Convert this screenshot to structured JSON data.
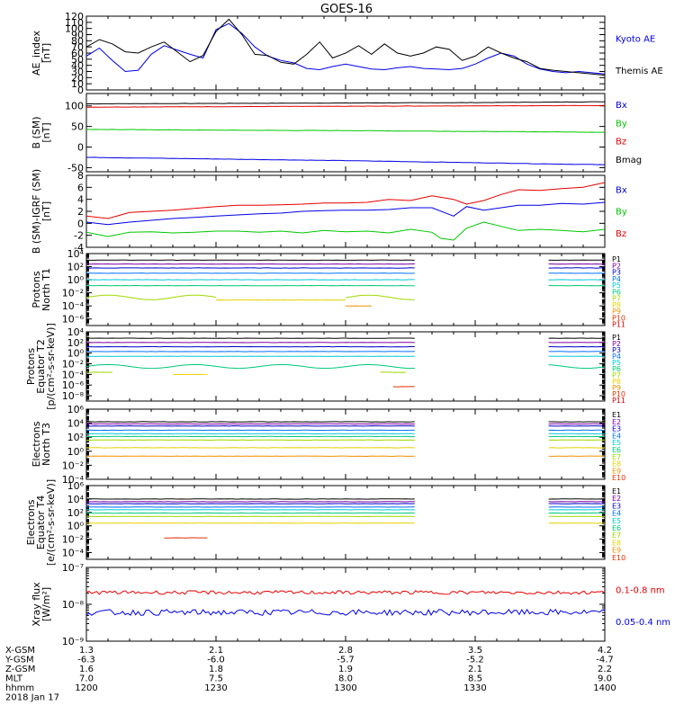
{
  "title": "GOES-16",
  "colors": {
    "black": "#000000",
    "blue": "#0000e6",
    "red": "#e60000",
    "green": "#00c800",
    "p": [
      "#000000",
      "#8000a0",
      "#0000c8",
      "#0070ff",
      "#00c8d8",
      "#00c878",
      "#a0d800",
      "#e8d000",
      "#f09000",
      "#e03000",
      "#d00000"
    ],
    "e": [
      "#000000",
      "#8000a0",
      "#0000c8",
      "#0070ff",
      "#00c8d8",
      "#00c878",
      "#a0d800",
      "#e8d000",
      "#f09000",
      "#e03000",
      "#d00000"
    ]
  },
  "chart_data": {
    "type": "line",
    "x_axis": {
      "labels": [
        "1200",
        "1230",
        "1300",
        "1330",
        "1400"
      ],
      "rows": [
        {
          "name": "X-GSM",
          "values": [
            "1.3",
            "2.1",
            "2.8",
            "3.5",
            "4.2"
          ]
        },
        {
          "name": "Y-GSM",
          "values": [
            "-6.3",
            "-6.0",
            "-5.7",
            "-5.2",
            "-4.7"
          ]
        },
        {
          "name": "Z-GSM",
          "values": [
            "1.6",
            "1.8",
            "1.9",
            "2.1",
            "2.2"
          ]
        },
        {
          "name": "MLT",
          "values": [
            "7.0",
            "7.5",
            "8.0",
            "8.5",
            "9.0"
          ]
        },
        {
          "name": "hhmm",
          "values": [
            "1200",
            "1230",
            "1300",
            "1330",
            "1400"
          ]
        }
      ],
      "date": "2018 Jan 17",
      "range_minutes": [
        0,
        120
      ]
    },
    "panels": [
      {
        "id": "ae",
        "ylabel": [
          "AE_index",
          "[nT]"
        ],
        "ylim": [
          0,
          120
        ],
        "scale": "linear",
        "ticks": [
          0,
          10,
          20,
          30,
          40,
          50,
          60,
          70,
          80,
          90,
          100,
          110,
          120
        ],
        "tick_labels": [
          "0",
          "10",
          "20",
          "30",
          "40",
          "50",
          "60",
          "70",
          "80",
          "90",
          "100",
          "110",
          "120"
        ],
        "legend": [
          "Kyoto AE",
          "Themis AE"
        ],
        "legend_colors": [
          "#0000e6",
          "#000000"
        ],
        "series": [
          {
            "name": "Kyoto AE",
            "color": "#0000e6",
            "x": [
              0,
              3,
              6,
              9,
              12,
              15,
              18,
              21,
              24,
              27,
              30,
              33,
              36,
              39,
              42,
              45,
              48,
              51,
              54,
              57,
              60,
              63,
              66,
              69,
              72,
              75,
              78,
              81,
              84,
              87,
              90,
              93,
              96,
              99,
              102,
              105,
              108,
              111,
              114,
              117,
              120
            ],
            "y": [
              55,
              68,
              48,
              30,
              32,
              58,
              72,
              65,
              58,
              52,
              98,
              108,
              92,
              70,
              55,
              48,
              44,
              35,
              33,
              38,
              42,
              38,
              34,
              33,
              36,
              38,
              35,
              34,
              33,
              35,
              42,
              52,
              60,
              55,
              42,
              34,
              30,
              28,
              30,
              28,
              26
            ]
          },
          {
            "name": "Themis AE",
            "color": "#000000",
            "x": [
              0,
              3,
              6,
              9,
              12,
              15,
              18,
              21,
              24,
              27,
              30,
              33,
              36,
              39,
              42,
              45,
              48,
              51,
              54,
              57,
              60,
              63,
              66,
              69,
              72,
              75,
              78,
              81,
              84,
              87,
              90,
              93,
              96,
              99,
              102,
              105,
              108,
              111,
              114,
              117,
              120
            ],
            "y": [
              70,
              82,
              75,
              62,
              60,
              70,
              78,
              62,
              46,
              56,
              95,
              115,
              90,
              58,
              56,
              45,
              42,
              58,
              78,
              52,
              60,
              72,
              58,
              75,
              60,
              55,
              60,
              70,
              66,
              48,
              55,
              70,
              60,
              52,
              46,
              35,
              32,
              30,
              28,
              26,
              24
            ]
          }
        ]
      },
      {
        "id": "bsm",
        "ylabel": [
          "B (SM)",
          "[nT]"
        ],
        "ylim": [
          -60,
          130
        ],
        "scale": "linear",
        "ticks": [
          -50,
          0,
          50,
          100
        ],
        "tick_labels": [
          "-50",
          "0",
          "50",
          "100"
        ],
        "legend": [
          "Bx",
          "By",
          "Bz",
          "Bmag"
        ],
        "legend_colors": [
          "#0000e6",
          "#00c800",
          "#e60000",
          "#000000"
        ],
        "series": [
          {
            "name": "Bmag",
            "color": "#000000",
            "x": [
              0,
              30,
              60,
              90,
              120
            ],
            "y": [
              105,
              106,
              107,
              108,
              110
            ]
          },
          {
            "name": "Bz",
            "color": "#e60000",
            "x": [
              0,
              30,
              60,
              90,
              120
            ],
            "y": [
              97,
              98,
              99,
              100,
              101
            ]
          },
          {
            "name": "By",
            "color": "#00c800",
            "x": [
              0,
              30,
              60,
              90,
              120
            ],
            "y": [
              43,
              41,
              40,
              38,
              36
            ]
          },
          {
            "name": "Bx",
            "color": "#0000e6",
            "x": [
              0,
              30,
              60,
              90,
              120
            ],
            "y": [
              -25,
              -29,
              -33,
              -38,
              -43
            ]
          }
        ]
      },
      {
        "id": "bdiff",
        "ylabel": [
          "B (SM)-IGRF (SM)",
          "[nT]"
        ],
        "ylim": [
          -4,
          8
        ],
        "scale": "linear",
        "ticks": [
          -4,
          -2,
          0,
          2,
          4,
          6,
          8
        ],
        "tick_labels": [
          "-4",
          "-2",
          "0",
          "2",
          "4",
          "6",
          "8"
        ],
        "legend": [
          "Bx",
          "By",
          "Bz"
        ],
        "legend_colors": [
          "#0000e6",
          "#00c800",
          "#e60000"
        ],
        "series": [
          {
            "name": "Bz",
            "color": "#e60000",
            "x": [
              0,
              5,
              10,
              15,
              20,
              25,
              30,
              35,
              40,
              45,
              50,
              55,
              60,
              65,
              70,
              75,
              80,
              85,
              88,
              92,
              96,
              100,
              105,
              110,
              115,
              120
            ],
            "y": [
              1.2,
              0.8,
              1.8,
              2.0,
              2.2,
              2.5,
              2.8,
              3.0,
              3.0,
              3.1,
              3.2,
              3.4,
              3.4,
              3.5,
              4.0,
              3.8,
              4.6,
              4.0,
              3.2,
              3.8,
              4.8,
              5.6,
              5.5,
              5.8,
              6.0,
              6.8
            ]
          },
          {
            "name": "Bx",
            "color": "#0000e6",
            "x": [
              0,
              5,
              10,
              15,
              20,
              25,
              30,
              35,
              40,
              45,
              50,
              55,
              60,
              65,
              70,
              75,
              80,
              85,
              88,
              92,
              96,
              100,
              105,
              110,
              115,
              120
            ],
            "y": [
              0.2,
              -0.2,
              0.2,
              0.5,
              0.8,
              1.0,
              1.2,
              1.4,
              1.6,
              1.7,
              2.0,
              2.1,
              2.2,
              2.2,
              2.3,
              2.6,
              2.6,
              1.2,
              2.8,
              2.2,
              2.6,
              3.0,
              3.0,
              3.3,
              3.2,
              3.5
            ]
          },
          {
            "name": "By",
            "color": "#00c800",
            "x": [
              0,
              5,
              10,
              15,
              20,
              25,
              30,
              35,
              40,
              45,
              50,
              55,
              60,
              65,
              70,
              75,
              80,
              82,
              85,
              88,
              92,
              96,
              100,
              105,
              110,
              115,
              120
            ],
            "y": [
              -1.5,
              -2.2,
              -1.5,
              -1.4,
              -1.6,
              -1.5,
              -1.3,
              -1.3,
              -1.5,
              -1.3,
              -1.6,
              -1.2,
              -1.4,
              -1.3,
              -1.6,
              -1.0,
              -1.5,
              -2.5,
              -2.8,
              -0.8,
              0.2,
              -0.5,
              -1.2,
              -1.0,
              -1.2,
              -1.4,
              -1.0
            ]
          }
        ]
      },
      {
        "id": "protons_t1",
        "ylabel": [
          "Protons",
          "North T1"
        ],
        "ylim_log": [
          -7,
          4
        ],
        "scale": "log",
        "ticks": [
          4,
          2,
          0,
          -2,
          -4,
          -6
        ],
        "tick_labels": [
          "10⁴",
          "10²",
          "10⁰",
          "10⁻²",
          "10⁻⁴",
          "10⁻⁶"
        ],
        "legend": [
          "P1",
          "P2",
          "P3",
          "P4",
          "P5",
          "P6",
          "P7",
          "P8",
          "P9",
          "P10",
          "P11"
        ],
        "gaps": [
          [
            76,
            107
          ]
        ],
        "series": [
          {
            "name": "P1",
            "log_level": 3.0
          },
          {
            "name": "P2",
            "log_level": 2.4
          },
          {
            "name": "P3",
            "log_level": 1.8
          },
          {
            "name": "P4",
            "log_level": 1.0
          },
          {
            "name": "P5",
            "log_level": 0.0
          },
          {
            "name": "P6",
            "log_level": -0.9
          },
          {
            "name": "P7",
            "log_level": -2.7,
            "segments": [
              [
                0,
                30
              ],
              [
                60,
                76
              ]
            ]
          },
          {
            "name": "P8",
            "log_level": -3.1,
            "segments": [
              [
                30,
                60
              ]
            ]
          },
          {
            "name": "P9",
            "log_level": -4.0,
            "segments": [
              [
                60,
                66
              ]
            ]
          }
        ]
      },
      {
        "id": "protons_t2",
        "ylabel": [
          "Protons",
          "Equator T2",
          "[p/(cm²-s-sr-keV)]"
        ],
        "ylim_log": [
          -9,
          4
        ],
        "scale": "log",
        "ticks": [
          4,
          2,
          0,
          -2,
          -4,
          -6,
          -8
        ],
        "tick_labels": [
          "10⁴",
          "10²",
          "10⁰",
          "10⁻²",
          "10⁻⁴",
          "10⁻⁶",
          "10⁻⁸"
        ],
        "legend": [
          "P1",
          "P2",
          "P3",
          "P4",
          "P5",
          "P6",
          "P7",
          "P8",
          "P9",
          "P10",
          "P11"
        ],
        "gaps": [
          [
            76,
            107
          ]
        ],
        "series": [
          {
            "name": "P1",
            "log_level": 2.8
          },
          {
            "name": "P2",
            "log_level": 2.0
          },
          {
            "name": "P3",
            "log_level": 1.2
          },
          {
            "name": "P4",
            "log_level": 0.3
          },
          {
            "name": "P5",
            "log_level": -0.6
          },
          {
            "name": "P6",
            "log_level": -2.5
          },
          {
            "name": "P7",
            "log_level": -3.6,
            "segments": [
              [
                0,
                6
              ],
              [
                68,
                74
              ]
            ]
          },
          {
            "name": "P8",
            "log_level": -4.0,
            "segments": [
              [
                20,
                28
              ]
            ]
          },
          {
            "name": "P10",
            "log_level": -6.3,
            "segments": [
              [
                71,
                76
              ]
            ]
          }
        ]
      },
      {
        "id": "electrons_t3",
        "ylabel": [
          "Electrons",
          "North T3"
        ],
        "ylim_log": [
          -4,
          6
        ],
        "scale": "log",
        "ticks": [
          6,
          4,
          2,
          0,
          -2,
          -4
        ],
        "tick_labels": [
          "10⁶",
          "10⁴",
          "10²",
          "10⁰",
          "10⁻²",
          "10⁻⁴"
        ],
        "legend": [
          "E1",
          "E2",
          "E3",
          "E4",
          "E5",
          "E6",
          "E7",
          "E8",
          "E9",
          "E10"
        ],
        "gaps": [
          [
            76,
            107
          ]
        ],
        "series": [
          {
            "name": "E1",
            "log_level": 4.2
          },
          {
            "name": "E2",
            "log_level": 3.9
          },
          {
            "name": "E3",
            "log_level": 3.6
          },
          {
            "name": "E4",
            "log_level": 3.0
          },
          {
            "name": "E5",
            "log_level": 2.5
          },
          {
            "name": "E6",
            "log_level": 2.1
          },
          {
            "name": "E7",
            "log_level": 1.6
          },
          {
            "name": "E8",
            "log_level": 0.5
          },
          {
            "name": "E9",
            "log_level": -0.7
          }
        ]
      },
      {
        "id": "electrons_t4",
        "ylabel": [
          "Electrons",
          "Equator T4",
          "[e/(cm²-s-sr-keV)]"
        ],
        "ylim_log": [
          -5,
          6
        ],
        "scale": "log",
        "ticks": [
          6,
          4,
          2,
          0,
          -2,
          -4
        ],
        "tick_labels": [
          "10⁶",
          "10⁴",
          "10²",
          "10⁰",
          "10⁻²",
          "10⁻⁴"
        ],
        "legend": [
          "E1",
          "E2",
          "E3",
          "E4",
          "E5",
          "E6",
          "E7",
          "E8",
          "E9",
          "E10"
        ],
        "gaps": [
          [
            76,
            107
          ]
        ],
        "series": [
          {
            "name": "E1",
            "log_level": 4.0
          },
          {
            "name": "E2",
            "log_level": 3.6
          },
          {
            "name": "E3",
            "log_level": 3.3
          },
          {
            "name": "E4",
            "log_level": 2.8
          },
          {
            "name": "E5",
            "log_level": 2.4
          },
          {
            "name": "E6",
            "log_level": 1.9
          },
          {
            "name": "E7",
            "log_level": 1.4
          },
          {
            "name": "E8",
            "log_level": 0.4
          },
          {
            "name": "E10",
            "log_level": -1.8,
            "segments": [
              [
                18,
                28
              ]
            ]
          }
        ]
      },
      {
        "id": "xray",
        "ylabel": [
          "Xray flux",
          "[W/m²]"
        ],
        "ylim_log": [
          -9,
          -7
        ],
        "scale": "log",
        "ticks": [
          -7,
          -8,
          -9
        ],
        "tick_labels": [
          "10⁻⁷",
          "10⁻⁸",
          "10⁻⁹"
        ],
        "legend": [
          "0.1-0.8 nm",
          "0.05-0.4 nm"
        ],
        "legend_colors": [
          "#e60000",
          "#0000e6"
        ],
        "series": [
          {
            "name": "0.1-0.8 nm",
            "color": "#e60000",
            "log_level": -7.68,
            "noise": 0.05
          },
          {
            "name": "0.05-0.4 nm",
            "color": "#0000e6",
            "log_level": -8.22,
            "noise": 0.08
          }
        ]
      }
    ]
  }
}
